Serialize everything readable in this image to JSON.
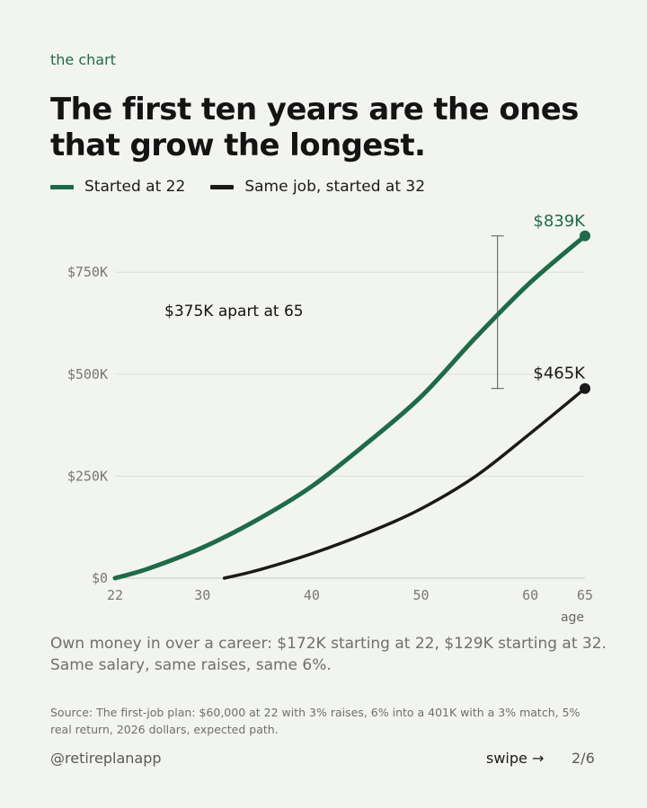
{
  "eyebrow": "the chart",
  "title_lines": [
    "The first ten years are the ones",
    "that grow the longest."
  ],
  "colors": {
    "green": "#1f6b48",
    "black": "#1a1a1a",
    "grid": "#dcdfd8",
    "axis": "#c8cbc4",
    "bracket": "#555555"
  },
  "chart_data": {
    "type": "line",
    "xlabel": "age",
    "ylabel": "",
    "x_ticks": [
      22,
      30,
      40,
      50,
      60,
      65
    ],
    "y_ticks": [
      0,
      250000,
      500000,
      750000
    ],
    "y_tick_labels": [
      "$0",
      "$250K",
      "$500K",
      "$750K"
    ],
    "xlim": [
      22,
      65
    ],
    "ylim": [
      0,
      850000
    ],
    "grid": true,
    "legend_position": "top-left",
    "series": [
      {
        "name": "Started at 22",
        "color": "#1f6b48",
        "x": [
          22,
          25,
          30,
          35,
          40,
          45,
          50,
          55,
          60,
          65
        ],
        "y": [
          0,
          23000,
          75000,
          143000,
          225000,
          330000,
          445000,
          590000,
          725000,
          839000
        ],
        "end_label": "$839K"
      },
      {
        "name": "Same job, started at 32",
        "color": "#1a1a1a",
        "x": [
          32,
          35,
          40,
          45,
          50,
          55,
          60,
          65
        ],
        "y": [
          0,
          19000,
          60000,
          110000,
          170000,
          250000,
          355000,
          465000
        ],
        "end_label": "$465K"
      }
    ],
    "annotations": [
      {
        "text": "$375K apart at 65",
        "type": "bracket",
        "x": 57,
        "y_from": 465000,
        "y_to": 839000
      }
    ]
  },
  "note": "Own money in over a career: $172K starting at 22, $129K starting at 32. Same salary, same raises, same 6%.",
  "source": "Source: The first-job plan: $60,000 at 22 with 3% raises, 6% into a 401K with a 3% match, 5% real return, 2026 dollars, expected path.",
  "footer": {
    "handle": "@retireplanapp",
    "swipe": "swipe →",
    "page": "2/6"
  }
}
